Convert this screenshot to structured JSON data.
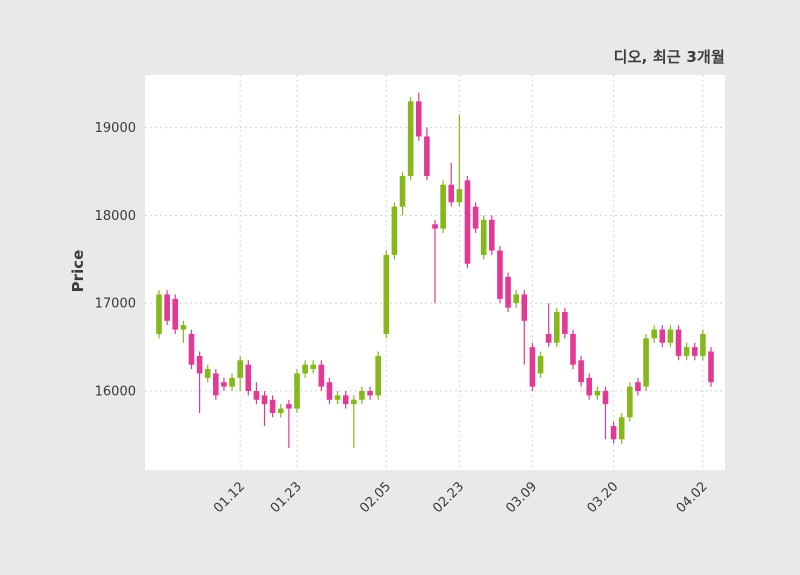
{
  "header": {
    "title": "디오, 최근 3개월"
  },
  "chart_data": {
    "type": "candlestick",
    "title": "디오, 최근 3개월",
    "xlabel": "",
    "ylabel": "Price",
    "ylim": [
      15100,
      19600
    ],
    "yticks": [
      16000,
      17000,
      18000,
      19000
    ],
    "xtick_labels": [
      "01.12",
      "01.23",
      "02.05",
      "02.23",
      "03.09",
      "03.20",
      "04.02"
    ],
    "xtick_indices": [
      10,
      17,
      28,
      37,
      46,
      56,
      67
    ],
    "grid": "dashed",
    "legend": "none",
    "candle_format": "ohlc",
    "colors": {
      "up": "#84b919",
      "down": "#e23a94",
      "background": "#e9e9e9",
      "plot_background": "#ffffff",
      "grid": "#d6d6d6",
      "text": "#3a3a3a"
    },
    "candles": [
      [
        16650,
        17150,
        16600,
        17100
      ],
      [
        17100,
        17150,
        16750,
        16800
      ],
      [
        17050,
        17100,
        16650,
        16700
      ],
      [
        16700,
        16800,
        16550,
        16750
      ],
      [
        16650,
        16700,
        16250,
        16300
      ],
      [
        16400,
        16450,
        15750,
        16200
      ],
      [
        16150,
        16300,
        16100,
        16250
      ],
      [
        16200,
        16250,
        15900,
        15950
      ],
      [
        16100,
        16150,
        16000,
        16050
      ],
      [
        16050,
        16200,
        16000,
        16150
      ],
      [
        16150,
        16400,
        16000,
        16350
      ],
      [
        16300,
        16350,
        15950,
        16000
      ],
      [
        16000,
        16100,
        15850,
        15900
      ],
      [
        15950,
        16000,
        15600,
        15850
      ],
      [
        15900,
        15950,
        15700,
        15750
      ],
      [
        15750,
        15850,
        15700,
        15800
      ],
      [
        15850,
        15900,
        15350,
        15800
      ],
      [
        15800,
        16250,
        15750,
        16200
      ],
      [
        16200,
        16350,
        16150,
        16300
      ],
      [
        16250,
        16350,
        16200,
        16300
      ],
      [
        16300,
        16350,
        16000,
        16050
      ],
      [
        16100,
        16150,
        15850,
        15900
      ],
      [
        15900,
        16000,
        15850,
        15950
      ],
      [
        15950,
        16000,
        15800,
        15850
      ],
      [
        15850,
        15950,
        15350,
        15900
      ],
      [
        15900,
        16050,
        15850,
        16000
      ],
      [
        16000,
        16050,
        15900,
        15950
      ],
      [
        15950,
        16450,
        15900,
        16400
      ],
      [
        16650,
        17600,
        16600,
        17550
      ],
      [
        17550,
        18150,
        17500,
        18100
      ],
      [
        18100,
        18500,
        18000,
        18450
      ],
      [
        18450,
        19350,
        18400,
        19300
      ],
      [
        19300,
        19400,
        18850,
        18900
      ],
      [
        18900,
        19000,
        18400,
        18450
      ],
      [
        17900,
        17950,
        17000,
        17850
      ],
      [
        17850,
        18400,
        17800,
        18350
      ],
      [
        18350,
        18600,
        18100,
        18150
      ],
      [
        18150,
        19150,
        18100,
        18300
      ],
      [
        18400,
        18450,
        17400,
        17450
      ],
      [
        18100,
        18150,
        17800,
        17850
      ],
      [
        17550,
        18000,
        17500,
        17950
      ],
      [
        17950,
        18000,
        17550,
        17600
      ],
      [
        17600,
        17650,
        17000,
        17050
      ],
      [
        17300,
        17350,
        16900,
        16950
      ],
      [
        17000,
        17150,
        16950,
        17100
      ],
      [
        17100,
        17150,
        16300,
        16800
      ],
      [
        16500,
        16550,
        16000,
        16050
      ],
      [
        16200,
        16450,
        16150,
        16400
      ],
      [
        16650,
        17000,
        16500,
        16550
      ],
      [
        16550,
        16950,
        16500,
        16900
      ],
      [
        16900,
        16950,
        16600,
        16650
      ],
      [
        16650,
        16700,
        16250,
        16300
      ],
      [
        16350,
        16400,
        16050,
        16100
      ],
      [
        16150,
        16200,
        15900,
        15950
      ],
      [
        15950,
        16050,
        15900,
        16000
      ],
      [
        16000,
        16050,
        15450,
        15850
      ],
      [
        15600,
        15650,
        15400,
        15450
      ],
      [
        15450,
        15750,
        15400,
        15700
      ],
      [
        15700,
        16100,
        15650,
        16050
      ],
      [
        16100,
        16150,
        15950,
        16000
      ],
      [
        16050,
        16650,
        16000,
        16600
      ],
      [
        16600,
        16750,
        16550,
        16700
      ],
      [
        16700,
        16750,
        16500,
        16550
      ],
      [
        16550,
        16750,
        16500,
        16700
      ],
      [
        16700,
        16750,
        16350,
        16400
      ],
      [
        16400,
        16550,
        16350,
        16500
      ],
      [
        16500,
        16550,
        16350,
        16400
      ],
      [
        16400,
        16700,
        16350,
        16650
      ],
      [
        16450,
        16500,
        16050,
        16100
      ]
    ]
  }
}
